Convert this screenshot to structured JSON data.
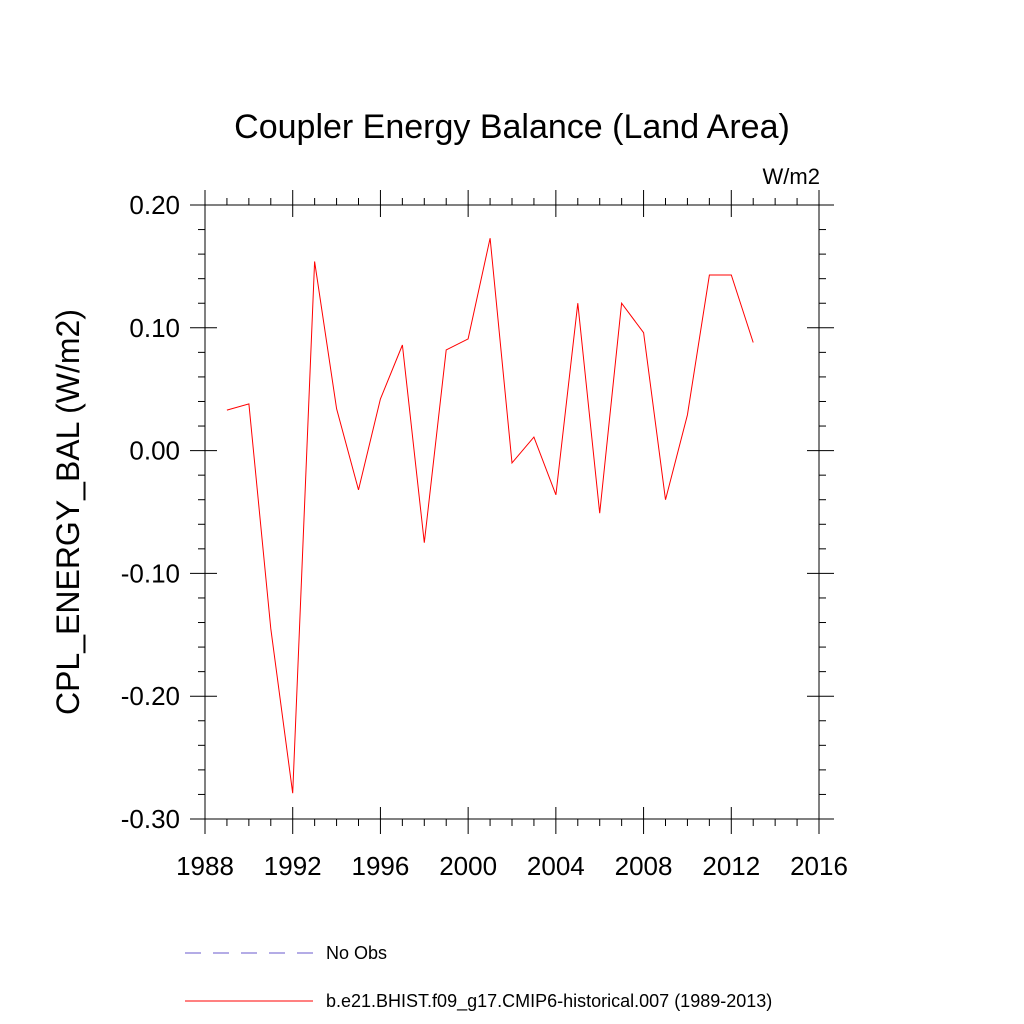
{
  "chart_data": {
    "type": "line",
    "title": "Coupler Energy Balance (Land Area)",
    "units_label": "W/m2",
    "ylabel": "CPL_ENERGY_BAL  (W/m2)",
    "xlabel": "",
    "xlim": [
      1988,
      2016
    ],
    "ylim": [
      -0.3,
      0.2
    ],
    "x_ticks": [
      1988,
      1992,
      1996,
      2000,
      2004,
      2008,
      2012,
      2016
    ],
    "x_tick_labels": [
      "1988",
      "1992",
      "1996",
      "2000",
      "2004",
      "2008",
      "2012",
      "2016"
    ],
    "y_ticks": [
      0.2,
      0.1,
      0.0,
      -0.1,
      -0.2,
      -0.3
    ],
    "y_tick_labels": [
      "0.20",
      "0.10",
      "0.00",
      "-0.10",
      "-0.20",
      "-0.30"
    ],
    "grid": false,
    "legend_position": "bottom",
    "series": [
      {
        "name": "b.e21.BHIST.f09_g17.CMIP6-historical.007 (1989-2013)",
        "color": "#ff0000",
        "style": "solid",
        "x": [
          1989,
          1990,
          1991,
          1992,
          1993,
          1994,
          1995,
          1996,
          1997,
          1998,
          1999,
          2000,
          2001,
          2002,
          2003,
          2004,
          2005,
          2006,
          2007,
          2008,
          2009,
          2010,
          2011,
          2012,
          2013
        ],
        "values": [
          0.033,
          0.038,
          -0.145,
          -0.279,
          0.154,
          0.034,
          -0.032,
          0.042,
          0.086,
          -0.075,
          0.082,
          0.091,
          0.173,
          -0.01,
          0.011,
          -0.036,
          0.12,
          -0.051,
          0.12,
          0.096,
          -0.04,
          0.029,
          0.143,
          0.143,
          0.088
        ]
      }
    ],
    "legend": [
      {
        "label": "No Obs",
        "color": "#6a5acd",
        "style": "dashed"
      },
      {
        "label": "b.e21.BHIST.f09_g17.CMIP6-historical.007 (1989-2013)",
        "color": "#ff0000",
        "style": "solid"
      }
    ]
  }
}
